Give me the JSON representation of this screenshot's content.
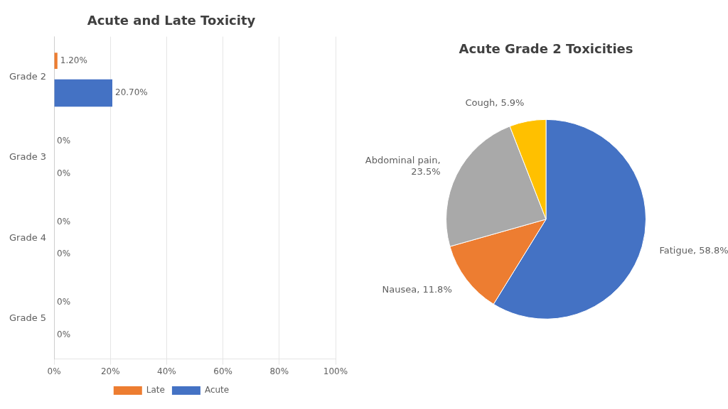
{
  "chart_data": [
    {
      "type": "bar",
      "title": "Acute and Late Toxicity",
      "orientation": "horizontal",
      "categories": [
        "Grade 2",
        "Grade 3",
        "Grade 4",
        "Grade 5"
      ],
      "series": [
        {
          "name": "Late",
          "color": "#ED7D31",
          "values": [
            1.2,
            0,
            0,
            0
          ],
          "value_labels": [
            "1.20%",
            "0%",
            "0%",
            "0%"
          ]
        },
        {
          "name": "Acute",
          "color": "#4472C4",
          "values": [
            20.7,
            0,
            0,
            0
          ],
          "value_labels": [
            "20.70%",
            "0%",
            "0%",
            "0%"
          ]
        }
      ],
      "xlim": [
        0,
        100
      ],
      "xticks": [
        {
          "value": 0,
          "label": "0%"
        },
        {
          "value": 20,
          "label": "20%"
        },
        {
          "value": 40,
          "label": "40%"
        },
        {
          "value": 60,
          "label": "60%"
        },
        {
          "value": 80,
          "label": "80%"
        },
        {
          "value": 100,
          "label": "100%"
        }
      ],
      "grid": true,
      "legend": "bottom",
      "data_labels": true
    },
    {
      "type": "pie",
      "title": "Acute Grade 2 Toxicities",
      "categories": [
        "Fatigue, 58.8%",
        "Nausea, 11.8%",
        "Abdominal pain,\n23.5%",
        "Cough, 5.9%"
      ],
      "values": [
        58.8,
        11.8,
        23.5,
        5.9
      ],
      "colors": [
        "#4472C4",
        "#ED7D31",
        "#A9A9A9",
        "#FFC000"
      ]
    }
  ]
}
